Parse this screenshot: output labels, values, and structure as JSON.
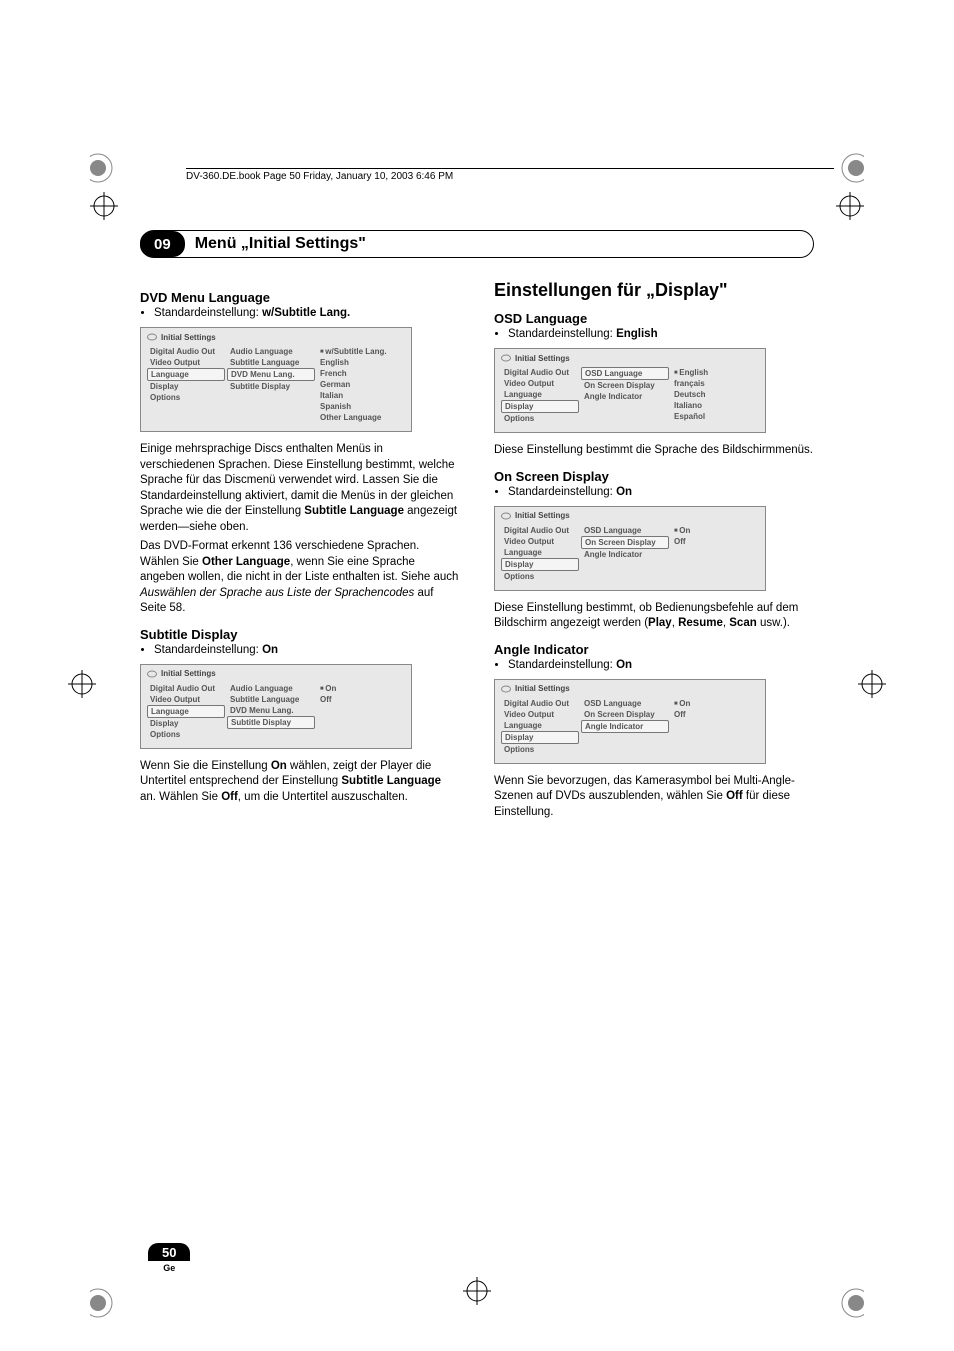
{
  "bookline": "DV-360.DE.book  Page 50  Friday, January 10, 2003  6:46 PM",
  "header": {
    "num": "09",
    "title": "Menü „Initial Settings\""
  },
  "pagenum": {
    "num": "50",
    "lang": "Ge"
  },
  "left": {
    "h_dvd": "DVD Menu Language",
    "dvd_default": "Standardeinstellung: ",
    "dvd_default_val": "w/Subtitle Lang.",
    "osd1": {
      "title": "Initial Settings",
      "col1": [
        "Digital Audio Out",
        "Video Output",
        "Language",
        "Display",
        "Options"
      ],
      "col1_sel_index": 2,
      "col2": [
        "Audio Language",
        "Subtitle Language",
        "DVD Menu Lang.",
        "Subtitle Display"
      ],
      "col2_sel_index": 2,
      "col3": [
        "w/Subtitle Lang.",
        "English",
        "French",
        "German",
        "Italian",
        "Spanish",
        "Other Language"
      ],
      "col3_bullet_index": 0
    },
    "para1a": "Einige mehrsprachige Discs enthalten Menüs in verschiedenen Sprachen. Diese Einstellung bestimmt, welche Sprache für das Discmenü verwendet wird. Lassen Sie die Standardeinstellung aktiviert, damit die Menüs in der gleichen Sprache wie die der Einstellung ",
    "para1b": "Subtitle Language",
    "para1c": " angezeigt werden—siehe oben.",
    "para2a": "Das DVD-Format erkennt 136 verschiedene Sprachen. Wählen Sie ",
    "para2b": "Other Language",
    "para2c": ", wenn Sie eine Sprache angeben wollen, die nicht in der Liste enthalten ist. Siehe auch ",
    "para2d": "Auswählen der Sprache aus Liste der Sprachencodes",
    "para2e": " auf Seite 58.",
    "h_sub": "Subtitle Display",
    "sub_default": "Standardeinstellung: ",
    "sub_default_val": "On",
    "osd2": {
      "title": "Initial Settings",
      "col1": [
        "Digital Audio Out",
        "Video Output",
        "Language",
        "Display",
        "Options"
      ],
      "col1_sel_index": 2,
      "col2": [
        "Audio Language",
        "Subtitle Language",
        "DVD Menu Lang.",
        "Subtitle Display"
      ],
      "col2_sel_index": 3,
      "col3": [
        "On",
        "Off"
      ],
      "col3_bullet_index": 0
    },
    "para3a": "Wenn Sie die Einstellung ",
    "para3b": "On",
    "para3c": " wählen, zeigt der Player die Untertitel entsprechend der Einstellung ",
    "para3d": "Subtitle Language",
    "para3e": " an. Wählen Sie ",
    "para3f": "Off",
    "para3g": ", um die Untertitel auszuschalten."
  },
  "right": {
    "h_disp": "Einstellungen für „Display\"",
    "h_osd": "OSD Language",
    "osd_default": "Standardeinstellung: ",
    "osd_default_val": "English",
    "osd3": {
      "title": "Initial Settings",
      "col1": [
        "Digital Audio Out",
        "Video Output",
        "Language",
        "Display",
        "Options"
      ],
      "col1_sel_index": 3,
      "col2": [
        "OSD Language",
        "On Screen Display",
        "Angle Indicator"
      ],
      "col2_sel_index": 0,
      "col3": [
        "English",
        "français",
        "Deutsch",
        "Italiano",
        "Español"
      ],
      "col3_bullet_index": 0
    },
    "para4": "Diese Einstellung bestimmt die Sprache des Bildschirmmenüs.",
    "h_onscr": "On Screen Display",
    "onscr_default": "Standardeinstellung: ",
    "onscr_default_val": "On",
    "osd4": {
      "title": "Initial Settings",
      "col1": [
        "Digital Audio Out",
        "Video Output",
        "Language",
        "Display",
        "Options"
      ],
      "col1_sel_index": 3,
      "col2": [
        "OSD Language",
        "On Screen Display",
        "Angle Indicator"
      ],
      "col2_sel_index": 1,
      "col3": [
        "On",
        "Off"
      ],
      "col3_bullet_index": 0
    },
    "para5a": "Diese Einstellung bestimmt, ob Bedienungsbefehle auf dem Bildschirm angezeigt werden (",
    "para5b": "Play",
    "para5c": ", ",
    "para5d": "Resume",
    "para5e": ", ",
    "para5f": "Scan",
    "para5g": " usw.).",
    "h_angle": "Angle Indicator",
    "angle_default": "Standardeinstellung: ",
    "angle_default_val": "On",
    "osd5": {
      "title": "Initial Settings",
      "col1": [
        "Digital Audio Out",
        "Video Output",
        "Language",
        "Display",
        "Options"
      ],
      "col1_sel_index": 3,
      "col2": [
        "OSD Language",
        "On Screen Display",
        "Angle Indicator"
      ],
      "col2_sel_index": 2,
      "col3": [
        "On",
        "Off"
      ],
      "col3_bullet_index": 0
    },
    "para6a": "Wenn Sie bevorzugen, das Kamerasymbol bei Multi-Angle-Szenen auf DVDs auszublenden, wählen Sie ",
    "para6b": "Off",
    "para6c": " für diese Einstellung."
  }
}
